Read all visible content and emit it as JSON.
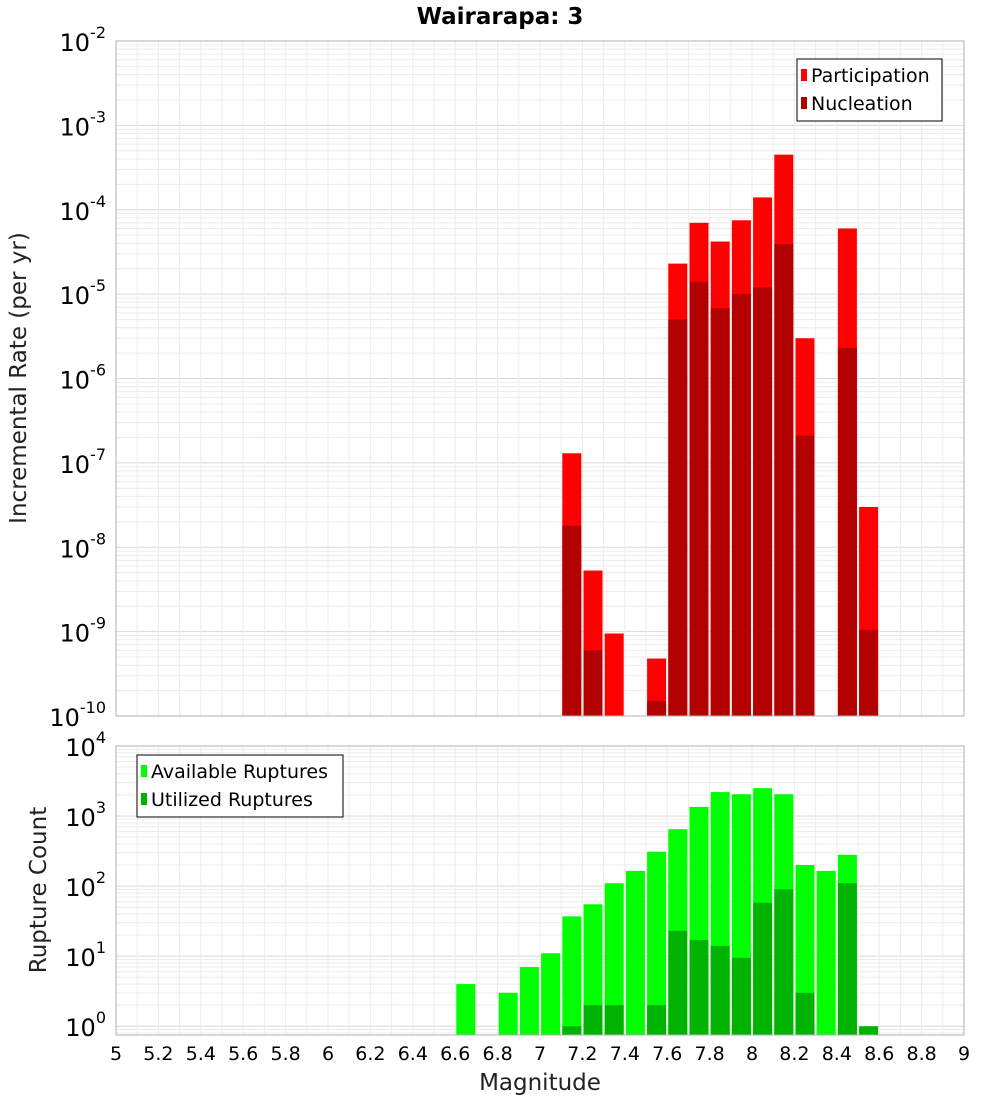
{
  "chart_data": [
    {
      "type": "bar",
      "title": "Wairarapa: 3",
      "xlabel": "Magnitude",
      "ylabel": "Incremental Rate (per yr)",
      "yscale": "log",
      "xlim": [
        5,
        9
      ],
      "ylim": [
        1e-10,
        0.01
      ],
      "y_tick_labels": [
        {
          "base": "10",
          "exp": "-10"
        },
        {
          "base": "10",
          "exp": "-9"
        },
        {
          "base": "10",
          "exp": "-8"
        },
        {
          "base": "10",
          "exp": "-7"
        },
        {
          "base": "10",
          "exp": "-6"
        },
        {
          "base": "10",
          "exp": "-5"
        },
        {
          "base": "10",
          "exp": "-4"
        },
        {
          "base": "10",
          "exp": "-3"
        },
        {
          "base": "10",
          "exp": "-2"
        }
      ],
      "grid": true,
      "legend_position": "top-right",
      "series": [
        {
          "name": "Participation",
          "color": "#ff0000",
          "x": [
            7.15,
            7.25,
            7.35,
            7.55,
            7.65,
            7.75,
            7.85,
            7.95,
            8.05,
            8.15,
            8.25,
            8.45,
            8.55
          ],
          "values": [
            1.3e-07,
            5.3e-09,
            9.5e-10,
            4.8e-10,
            2.3e-05,
            7e-05,
            4.2e-05,
            7.5e-05,
            0.00014,
            0.00045,
            3e-06,
            6e-05,
            3e-08
          ]
        },
        {
          "name": "Nucleation",
          "color": "#b30000",
          "x": [
            7.15,
            7.25,
            7.55,
            7.65,
            7.75,
            7.85,
            7.95,
            8.05,
            8.15,
            8.25,
            8.45,
            8.55
          ],
          "values": [
            1.8e-08,
            6e-10,
            1.5e-10,
            5e-06,
            1.4e-05,
            6.8e-06,
            1e-05,
            1.2e-05,
            3.9e-05,
            2.1e-07,
            2.3e-06,
            1.05e-09
          ]
        }
      ]
    },
    {
      "type": "bar",
      "xlabel": "Magnitude",
      "ylabel": "Rupture Count",
      "yscale": "log",
      "xlim": [
        5,
        9
      ],
      "ylim": [
        0.75,
        10000
      ],
      "x_ticks": [
        "5",
        "5.2",
        "5.4",
        "5.6",
        "5.8",
        "6",
        "6.2",
        "6.4",
        "6.6",
        "6.8",
        "7",
        "7.2",
        "7.4",
        "7.6",
        "7.8",
        "8",
        "8.2",
        "8.4",
        "8.6",
        "8.8",
        "9"
      ],
      "y_tick_labels": [
        {
          "base": "10",
          "exp": "0"
        },
        {
          "base": "10",
          "exp": "1"
        },
        {
          "base": "10",
          "exp": "2"
        },
        {
          "base": "10",
          "exp": "3"
        },
        {
          "base": "10",
          "exp": "4"
        }
      ],
      "grid": true,
      "legend_position": "top-left",
      "series": [
        {
          "name": "Available Ruptures",
          "color": "#00ff00",
          "x": [
            6.65,
            6.85,
            6.95,
            7.05,
            7.15,
            7.25,
            7.35,
            7.45,
            7.55,
            7.65,
            7.75,
            7.85,
            7.95,
            8.05,
            8.15,
            8.25,
            8.35,
            8.45
          ],
          "values": [
            4,
            3,
            7,
            11,
            37,
            55,
            110,
            165,
            310,
            650,
            1350,
            2200,
            2050,
            2500,
            2050,
            200,
            165,
            280
          ]
        },
        {
          "name": "Utilized Ruptures",
          "color": "#00b300",
          "x": [
            7.15,
            7.25,
            7.35,
            7.55,
            7.65,
            7.75,
            7.85,
            7.95,
            8.05,
            8.15,
            8.25,
            8.45,
            8.55
          ],
          "values": [
            1,
            2,
            2,
            2,
            23,
            17,
            14,
            9.5,
            58,
            90,
            3,
            110,
            1
          ]
        }
      ]
    }
  ]
}
